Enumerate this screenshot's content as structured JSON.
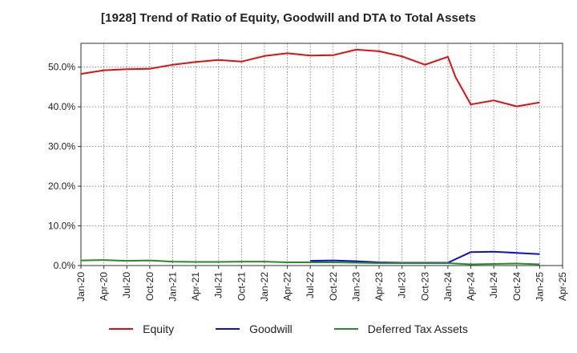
{
  "title": "[1928]  Trend of Ratio of Equity, Goodwill and DTA to Total Assets",
  "colors": {
    "equity": "#dd1111",
    "goodwill": "#1010cc",
    "dta": "#2a8a2a"
  },
  "chart_data": {
    "type": "line",
    "title": "[1928]  Trend of Ratio of Equity, Goodwill and DTA to Total Assets",
    "xlabel": "",
    "ylabel": "",
    "ylim": [
      0,
      56
    ],
    "yticks": [
      0,
      10,
      20,
      30,
      40,
      50
    ],
    "ytick_labels": [
      "0.0%",
      "10.0%",
      "20.0%",
      "30.0%",
      "40.0%",
      "50.0%"
    ],
    "x_tick_labels": [
      "Jan-20",
      "Apr-20",
      "Jul-20",
      "Oct-20",
      "Jan-21",
      "Apr-21",
      "Jul-21",
      "Oct-21",
      "Jan-22",
      "Apr-22",
      "Jul-22",
      "Oct-22",
      "Jan-23",
      "Apr-23",
      "Jul-23",
      "Oct-23",
      "Jan-24",
      "Apr-24",
      "Jul-24",
      "Oct-24",
      "Jan-25",
      "Apr-25"
    ],
    "grid": true,
    "legend_position": "bottom",
    "series": [
      {
        "name": "Equity",
        "color": "#dd1111",
        "points": [
          [
            "Jan-20",
            48.3
          ],
          [
            "Apr-20",
            49.2
          ],
          [
            "Jul-20",
            49.5
          ],
          [
            "Oct-20",
            49.6
          ],
          [
            "Jan-21",
            50.6
          ],
          [
            "Apr-21",
            51.3
          ],
          [
            "Jul-21",
            51.8
          ],
          [
            "Oct-21",
            51.4
          ],
          [
            "Jan-22",
            52.8
          ],
          [
            "Apr-22",
            53.5
          ],
          [
            "Jul-22",
            52.9
          ],
          [
            "Oct-22",
            53.0
          ],
          [
            "Jan-23",
            54.4
          ],
          [
            "Apr-23",
            54.0
          ],
          [
            "Jul-23",
            52.7
          ],
          [
            "Oct-23",
            50.6
          ],
          [
            "Jan-24",
            52.6
          ],
          [
            "Feb-24",
            47.5
          ],
          [
            "Apr-24",
            40.6
          ],
          [
            "Jul-24",
            41.6
          ],
          [
            "Oct-24",
            40.1
          ],
          [
            "Jan-25",
            41.1
          ]
        ]
      },
      {
        "name": "Goodwill",
        "color": "#1010cc",
        "points": [
          [
            "Jul-22",
            1.2
          ],
          [
            "Oct-22",
            1.3
          ],
          [
            "Jan-23",
            1.1
          ],
          [
            "Apr-23",
            0.8
          ],
          [
            "Jul-23",
            0.7
          ],
          [
            "Oct-23",
            0.7
          ],
          [
            "Jan-24",
            0.7
          ],
          [
            "Apr-24",
            3.4
          ],
          [
            "Jul-24",
            3.5
          ],
          [
            "Oct-24",
            3.2
          ],
          [
            "Jan-25",
            2.9
          ]
        ]
      },
      {
        "name": "Deferred Tax Assets",
        "color": "#2a8a2a",
        "points": [
          [
            "Jan-20",
            1.3
          ],
          [
            "Apr-20",
            1.4
          ],
          [
            "Jul-20",
            1.2
          ],
          [
            "Oct-20",
            1.3
          ],
          [
            "Jan-21",
            1.0
          ],
          [
            "Apr-21",
            0.9
          ],
          [
            "Jul-21",
            0.9
          ],
          [
            "Oct-21",
            1.0
          ],
          [
            "Jan-22",
            1.0
          ],
          [
            "Apr-22",
            0.8
          ],
          [
            "Jul-22",
            0.8
          ],
          [
            "Oct-22",
            0.8
          ],
          [
            "Jan-23",
            0.7
          ],
          [
            "Apr-23",
            0.6
          ],
          [
            "Jul-23",
            0.6
          ],
          [
            "Oct-23",
            0.6
          ],
          [
            "Jan-24",
            0.6
          ],
          [
            "Apr-24",
            0.3
          ],
          [
            "Jul-24",
            0.4
          ],
          [
            "Oct-24",
            0.5
          ],
          [
            "Jan-25",
            0.3
          ]
        ]
      }
    ]
  },
  "legend": [
    {
      "label": "Equity",
      "color": "#dd1111"
    },
    {
      "label": "Goodwill",
      "color": "#1010cc"
    },
    {
      "label": "Deferred Tax Assets",
      "color": "#2a8a2a"
    }
  ]
}
